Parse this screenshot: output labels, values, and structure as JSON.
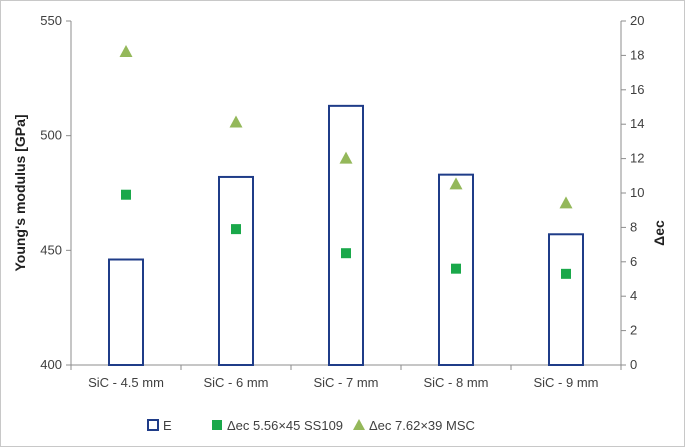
{
  "chart_data": {
    "type": "bar",
    "categories": [
      "SiC - 4.5 mm",
      "SiC  - 6 mm",
      "SiC  - 7 mm",
      "SiC  - 8 mm",
      "SiC  - 9 mm"
    ],
    "series": [
      {
        "name": "E",
        "kind": "bar",
        "axis": "left",
        "values": [
          446,
          482,
          513,
          483,
          457
        ],
        "color": "#1f3c88"
      },
      {
        "name": "Δec 5.56×45 SS109",
        "kind": "marker-square",
        "axis": "right",
        "values": [
          9.9,
          7.9,
          6.5,
          5.6,
          5.3
        ],
        "color": "#1aa84a"
      },
      {
        "name": "Δec 7.62×39 MSC",
        "kind": "marker-triangle",
        "axis": "right",
        "values": [
          18.2,
          14.1,
          12.0,
          10.5,
          9.4
        ],
        "color": "#94b85a"
      }
    ],
    "ylabel": "Young's  modulus  [GPa]",
    "y2label": "Δec",
    "ylim": [
      400,
      550
    ],
    "y2lim": [
      0,
      20
    ],
    "yticks": [
      "400",
      "450",
      "500",
      "550"
    ],
    "y2ticks": [
      "0",
      "2",
      "4",
      "6",
      "8",
      "10",
      "12",
      "14",
      "16",
      "18",
      "20"
    ],
    "grid": false,
    "legend_position": "bottom"
  }
}
